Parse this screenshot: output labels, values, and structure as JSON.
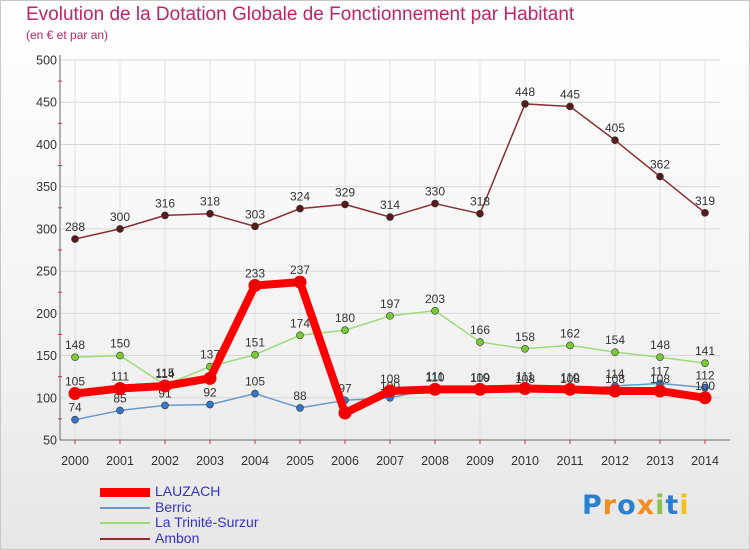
{
  "header": {
    "title": "Evolution de la Dotation Globale de Fonctionnement par Habitant",
    "subtitle": "(en € et par an)"
  },
  "logo": {
    "text": "Proxiti",
    "letter_colors": [
      "#2a7fd0",
      "#f28c1e",
      "#2a7fd0",
      "#f28c1e",
      "#8bc34a",
      "#2a7fd0",
      "#f2c21e"
    ]
  },
  "chart_data": {
    "type": "line",
    "title": "Evolution de la Dotation Globale de Fonctionnement par Habitant",
    "subtitle": "(en € et par an)",
    "xlabel": "",
    "ylabel": "",
    "ylim": [
      50,
      500
    ],
    "yticks": [
      50,
      100,
      150,
      200,
      250,
      300,
      350,
      400,
      450,
      500
    ],
    "grid": true,
    "legend_position": "bottom-left",
    "x": [
      "2000",
      "2001",
      "2002",
      "2003",
      "2004",
      "2005",
      "2006",
      "2007",
      "2008",
      "2009",
      "2010",
      "2011",
      "2012",
      "2013",
      "2014"
    ],
    "series": [
      {
        "name": "Ambon",
        "color": "#8b2e2e",
        "marker_color": "#5a1a1a",
        "values": [
          288,
          300,
          316,
          318,
          303,
          324,
          329,
          314,
          330,
          318,
          448,
          445,
          405,
          362,
          319
        ],
        "labels": [
          "288",
          "300",
          "316",
          "318",
          "303",
          "324",
          "329",
          "314",
          "330",
          "318",
          "448",
          "445",
          "405",
          "362",
          "319"
        ]
      },
      {
        "name": "La Trinité-Surzur",
        "color": "#99dd77",
        "marker_color": "#77cc33",
        "values": [
          148,
          150,
          115,
          137,
          151,
          174,
          180,
          197,
          203,
          166,
          158,
          162,
          154,
          148,
          141
        ],
        "labels": [
          "148",
          "150",
          "115",
          "137",
          "151",
          "174",
          "180",
          "197",
          "203",
          "166",
          "158",
          "162",
          "154",
          "148",
          "141"
        ]
      },
      {
        "name": "Berric",
        "color": "#6699cc",
        "marker_color": "#3377cc",
        "values": [
          74,
          85,
          91,
          92,
          105,
          88,
          97,
          100,
          111,
          109,
          108,
          108,
          114,
          117,
          112
        ],
        "labels": [
          "74",
          "85",
          "91",
          "92",
          "105",
          "88",
          "97",
          "100",
          "111",
          "109",
          "108",
          "108",
          "114",
          "117",
          "112"
        ]
      },
      {
        "name": "LAUZACH",
        "color": "#ff0000",
        "marker_color": "#ee0000",
        "values": [
          105,
          111,
          114,
          123,
          233,
          237,
          82,
          108,
          110,
          110,
          111,
          110,
          108,
          108,
          100
        ],
        "labels": [
          "105",
          "111",
          "114",
          "",
          "233",
          "237",
          "",
          "108",
          "110",
          "110",
          "111",
          "110",
          "108",
          "108",
          "100"
        ]
      }
    ],
    "legend_order": [
      "LAUZACH",
      "Berric",
      "La Trinité-Surzur",
      "Ambon"
    ]
  }
}
